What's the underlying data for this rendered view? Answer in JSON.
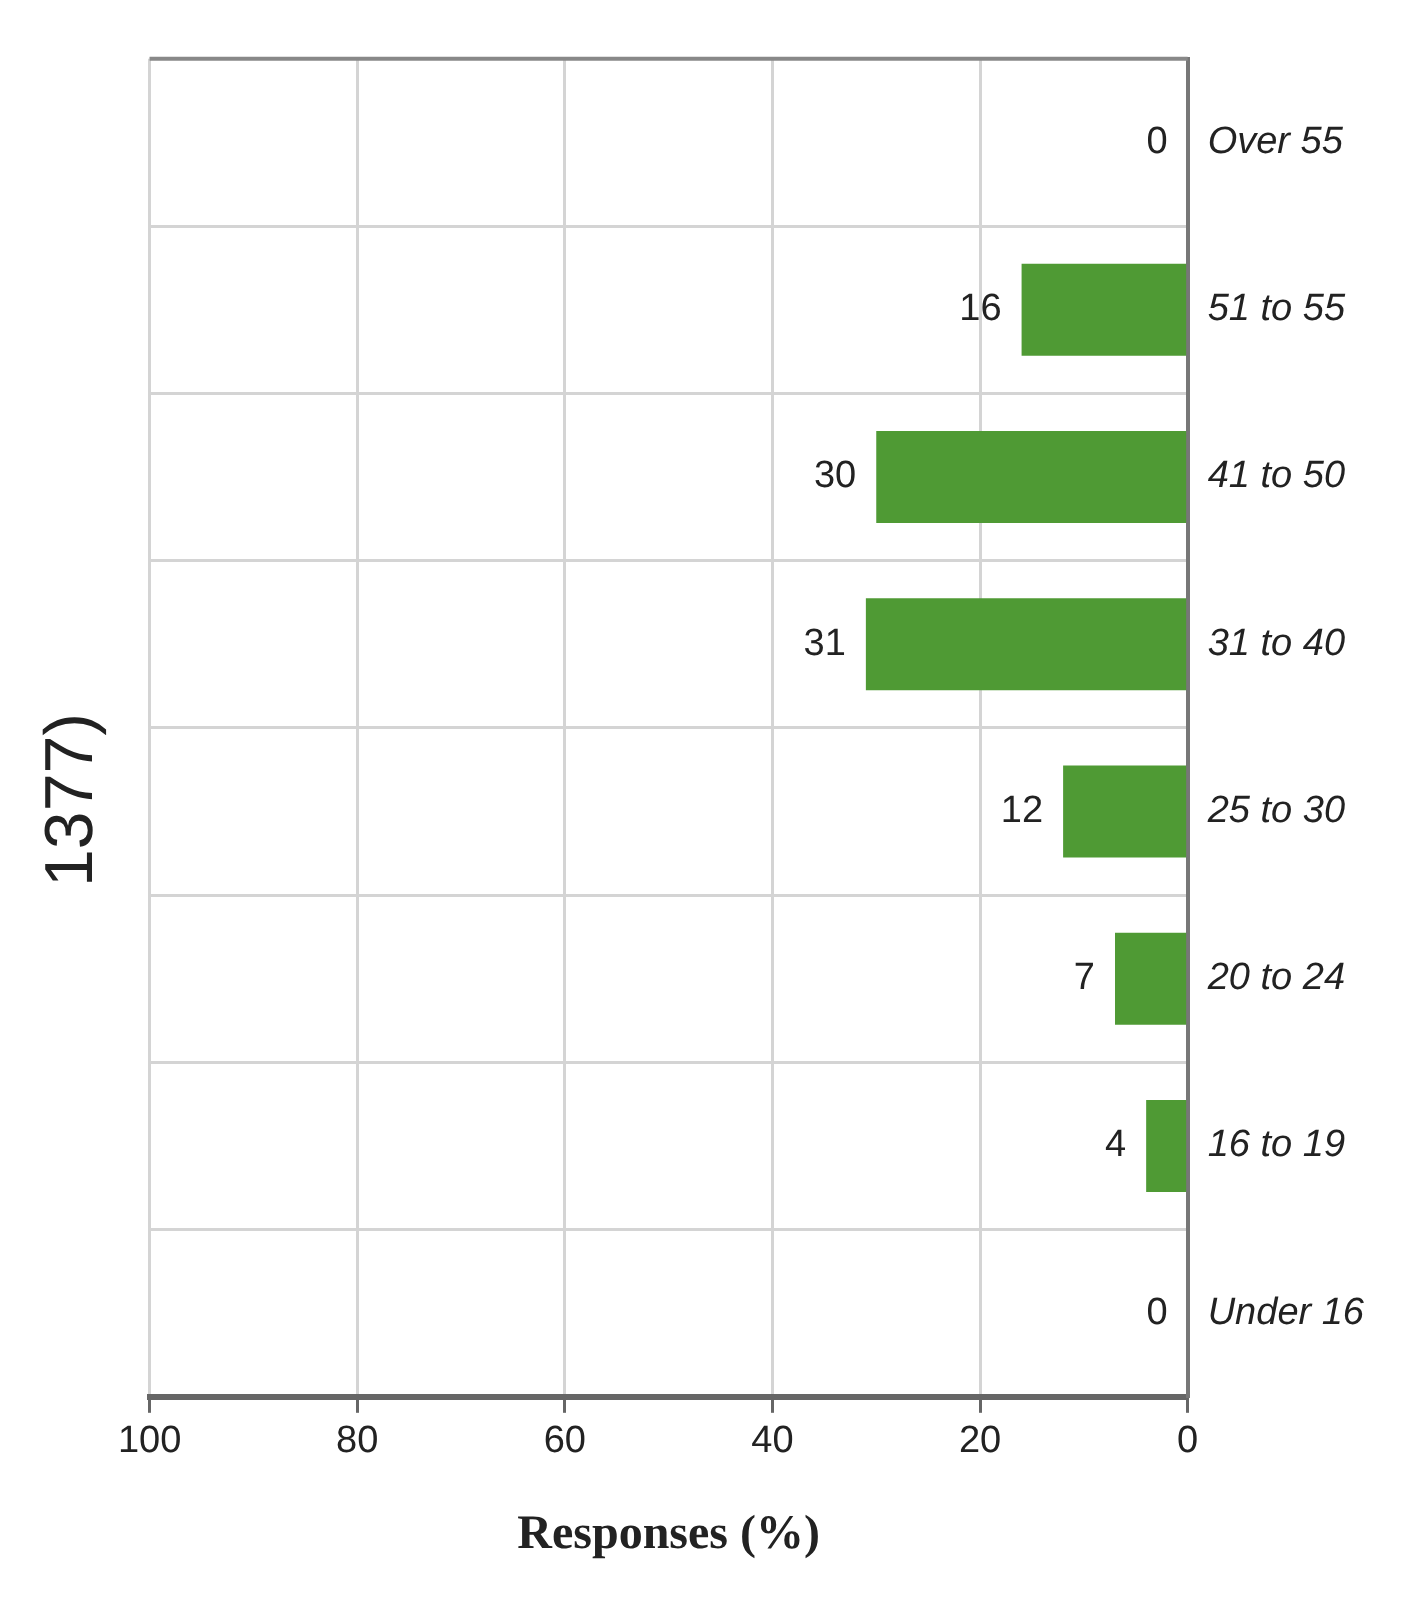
{
  "chart_data": {
    "type": "bar",
    "orientation": "horizontal",
    "title": "1377)",
    "xlabel": "Responses (%)",
    "categories": [
      "Over 55",
      "51 to 55",
      "41 to 50",
      "31 to 40",
      "25 to 30",
      "20 to 24",
      "16 to 19",
      "Under 16"
    ],
    "values": [
      0,
      16,
      30,
      31,
      12,
      7,
      4,
      0
    ],
    "color": "#4f9a34",
    "xlim": [
      100,
      0
    ],
    "xticks": [
      100,
      80,
      60,
      40,
      20,
      0
    ],
    "grid": true,
    "data_labels": true
  }
}
